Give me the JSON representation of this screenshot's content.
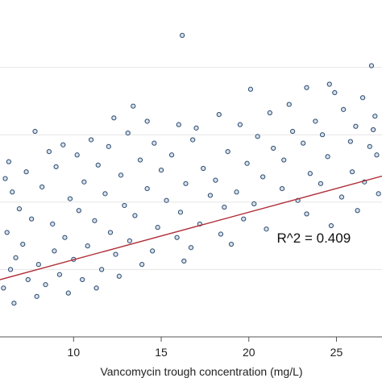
{
  "chart_data": {
    "type": "scatter",
    "title": "",
    "xlabel": "Vancomycin trough concentration (mg/L)",
    "ylabel": "",
    "xlim": [
      5.8,
      27.6
    ],
    "ylim": [
      0,
      100
    ],
    "x_ticks": [
      10,
      15,
      20,
      25
    ],
    "x_tick_labels": [
      "10",
      "15",
      "20",
      "25"
    ],
    "y_gridlines": [
      20,
      40,
      60,
      80
    ],
    "grid": "horizontal",
    "annotations": [
      {
        "text": "R^2 = 0.409",
        "x": 21.6,
        "y": 28
      }
    ],
    "regression": {
      "slope": 1.41,
      "intercept": 8.8,
      "color": "#b0303a"
    },
    "series": [
      {
        "marker": "hollow-circle",
        "color": "#2b4a6f",
        "points": [
          [
            16.2,
            89.5
          ],
          [
            27.0,
            80.5
          ],
          [
            24.6,
            75.0
          ],
          [
            23.3,
            74.0
          ],
          [
            20.1,
            73.5
          ],
          [
            24.9,
            72.5
          ],
          [
            26.5,
            71.0
          ],
          [
            13.4,
            68.5
          ],
          [
            12.3,
            65.0
          ],
          [
            22.3,
            69.0
          ],
          [
            7.8,
            61.0
          ],
          [
            14.2,
            64.0
          ],
          [
            16.0,
            63.0
          ],
          [
            18.3,
            66.0
          ],
          [
            21.2,
            66.5
          ],
          [
            25.4,
            67.5
          ],
          [
            27.2,
            65.5
          ],
          [
            9.4,
            57.0
          ],
          [
            11.0,
            58.5
          ],
          [
            13.1,
            60.5
          ],
          [
            17.0,
            62.0
          ],
          [
            19.5,
            63.0
          ],
          [
            23.8,
            64.0
          ],
          [
            26.1,
            62.5
          ],
          [
            6.3,
            52.0
          ],
          [
            8.6,
            55.0
          ],
          [
            10.2,
            54.0
          ],
          [
            12.0,
            56.5
          ],
          [
            14.6,
            57.5
          ],
          [
            16.8,
            58.5
          ],
          [
            20.5,
            59.5
          ],
          [
            22.5,
            61.0
          ],
          [
            24.2,
            60.0
          ],
          [
            27.1,
            61.5
          ],
          [
            6.1,
            47.0
          ],
          [
            7.3,
            49.0
          ],
          [
            9.0,
            50.5
          ],
          [
            11.4,
            51.0
          ],
          [
            13.8,
            52.5
          ],
          [
            15.6,
            54.0
          ],
          [
            18.8,
            55.0
          ],
          [
            21.4,
            56.0
          ],
          [
            23.1,
            57.5
          ],
          [
            25.8,
            58.0
          ],
          [
            26.9,
            56.5
          ],
          [
            6.5,
            43.0
          ],
          [
            8.2,
            44.5
          ],
          [
            10.6,
            46.0
          ],
          [
            12.7,
            48.0
          ],
          [
            15.0,
            49.5
          ],
          [
            17.4,
            50.0
          ],
          [
            19.9,
            51.5
          ],
          [
            22.0,
            52.5
          ],
          [
            24.5,
            53.5
          ],
          [
            27.3,
            54.0
          ],
          [
            6.9,
            38.0
          ],
          [
            9.8,
            41.0
          ],
          [
            11.8,
            42.5
          ],
          [
            14.2,
            44.0
          ],
          [
            16.4,
            45.5
          ],
          [
            18.1,
            46.5
          ],
          [
            20.8,
            47.5
          ],
          [
            23.5,
            48.5
          ],
          [
            25.9,
            49.0
          ],
          [
            7.6,
            35.0
          ],
          [
            10.3,
            37.5
          ],
          [
            12.9,
            39.0
          ],
          [
            15.3,
            40.5
          ],
          [
            17.8,
            42.0
          ],
          [
            19.3,
            43.0
          ],
          [
            21.9,
            44.0
          ],
          [
            24.1,
            45.5
          ],
          [
            26.6,
            46.0
          ],
          [
            6.2,
            31.0
          ],
          [
            8.8,
            33.5
          ],
          [
            11.2,
            34.5
          ],
          [
            13.5,
            36.0
          ],
          [
            16.1,
            37.0
          ],
          [
            18.6,
            38.5
          ],
          [
            20.3,
            39.5
          ],
          [
            22.8,
            40.5
          ],
          [
            25.3,
            41.5
          ],
          [
            27.4,
            42.5
          ],
          [
            7.1,
            27.5
          ],
          [
            9.5,
            29.5
          ],
          [
            12.1,
            31.0
          ],
          [
            14.8,
            32.5
          ],
          [
            17.2,
            33.5
          ],
          [
            19.7,
            35.0
          ],
          [
            23.3,
            36.5
          ],
          [
            26.2,
            37.5
          ],
          [
            6.7,
            23.5
          ],
          [
            8.9,
            25.5
          ],
          [
            10.8,
            27.0
          ],
          [
            13.2,
            28.5
          ],
          [
            15.9,
            29.5
          ],
          [
            18.4,
            30.5
          ],
          [
            21.0,
            32.0
          ],
          [
            24.7,
            33.0
          ],
          [
            6.4,
            20.0
          ],
          [
            8.0,
            21.5
          ],
          [
            10.0,
            23.0
          ],
          [
            12.4,
            24.5
          ],
          [
            14.5,
            25.5
          ],
          [
            16.7,
            26.5
          ],
          [
            19.0,
            27.5
          ],
          [
            7.4,
            17.0
          ],
          [
            9.2,
            18.5
          ],
          [
            11.6,
            20.0
          ],
          [
            13.9,
            21.5
          ],
          [
            16.3,
            22.5
          ],
          [
            6.0,
            14.5
          ],
          [
            8.4,
            15.5
          ],
          [
            10.5,
            17.0
          ],
          [
            12.6,
            18.0
          ],
          [
            7.9,
            12.0
          ],
          [
            9.7,
            13.0
          ],
          [
            11.3,
            14.5
          ],
          [
            6.6,
            10.0
          ]
        ]
      }
    ]
  }
}
